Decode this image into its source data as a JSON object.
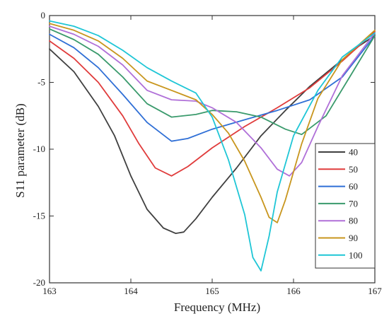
{
  "chart_data": {
    "type": "line",
    "xlabel": "Frequency (MHz)",
    "ylabel": "S11 parameter (dB)",
    "xlim": [
      163,
      167
    ],
    "ylim": [
      -20,
      0
    ],
    "xticks": [
      "163",
      "164",
      "165",
      "166",
      "167"
    ],
    "yticks": [
      "0",
      "-5",
      "-10",
      "-15",
      "-20"
    ],
    "legend_position": "right-inside",
    "grid": false,
    "series": [
      {
        "name": "40",
        "color": "#404040",
        "x": [
          163.0,
          163.3,
          163.6,
          163.8,
          164.0,
          164.2,
          164.4,
          164.55,
          164.65,
          164.8,
          165.0,
          165.3,
          165.6,
          165.9,
          166.2,
          166.5,
          166.8,
          167.0
        ],
        "y": [
          -2.5,
          -4.2,
          -6.8,
          -9.0,
          -12.0,
          -14.5,
          -15.9,
          -16.3,
          -16.2,
          -15.2,
          -13.6,
          -11.4,
          -9.0,
          -7.1,
          -5.3,
          -3.8,
          -2.3,
          -1.5
        ]
      },
      {
        "name": "50",
        "color": "#e03c3c",
        "x": [
          163.0,
          163.3,
          163.6,
          163.9,
          164.1,
          164.3,
          164.5,
          164.7,
          165.0,
          165.4,
          165.8,
          166.2,
          166.6,
          167.0
        ],
        "y": [
          -1.9,
          -3.2,
          -5.0,
          -7.5,
          -9.6,
          -11.4,
          -12.0,
          -11.3,
          -9.9,
          -8.3,
          -6.9,
          -5.4,
          -3.4,
          -1.2
        ]
      },
      {
        "name": "60",
        "color": "#2f6fd6",
        "x": [
          163.0,
          163.3,
          163.6,
          163.9,
          164.2,
          164.5,
          164.7,
          165.0,
          165.4,
          165.8,
          166.2,
          166.6,
          167.0
        ],
        "y": [
          -1.4,
          -2.4,
          -3.9,
          -5.9,
          -8.0,
          -9.4,
          -9.2,
          -8.5,
          -7.8,
          -7.1,
          -6.3,
          -4.6,
          -1.5
        ]
      },
      {
        "name": "70",
        "color": "#3a9a6c",
        "x": [
          163.0,
          163.3,
          163.6,
          163.9,
          164.2,
          164.5,
          164.8,
          165.0,
          165.3,
          165.6,
          165.9,
          166.1,
          166.4,
          166.7,
          167.0
        ],
        "y": [
          -1.0,
          -1.8,
          -2.9,
          -4.6,
          -6.6,
          -7.6,
          -7.4,
          -7.1,
          -7.2,
          -7.6,
          -8.5,
          -8.9,
          -7.5,
          -4.5,
          -1.5
        ]
      },
      {
        "name": "80",
        "color": "#b070d8",
        "x": [
          163.0,
          163.3,
          163.6,
          163.9,
          164.2,
          164.5,
          164.8,
          165.0,
          165.3,
          165.6,
          165.8,
          165.95,
          166.1,
          166.3,
          166.6,
          167.0
        ],
        "y": [
          -0.8,
          -1.4,
          -2.3,
          -3.7,
          -5.6,
          -6.3,
          -6.4,
          -6.9,
          -8.0,
          -9.9,
          -11.5,
          -12.0,
          -11.0,
          -8.3,
          -4.5,
          -1.3
        ]
      },
      {
        "name": "90",
        "color": "#c8961e",
        "x": [
          163.0,
          163.3,
          163.6,
          163.9,
          164.2,
          164.5,
          164.8,
          165.0,
          165.2,
          165.4,
          165.6,
          165.7,
          165.8,
          165.9,
          166.1,
          166.3,
          166.6,
          167.0
        ],
        "y": [
          -0.6,
          -1.1,
          -1.9,
          -3.2,
          -4.9,
          -5.6,
          -6.3,
          -7.4,
          -8.8,
          -10.9,
          -13.6,
          -15.1,
          -15.5,
          -13.8,
          -9.6,
          -6.2,
          -3.3,
          -1.1
        ]
      },
      {
        "name": "100",
        "color": "#1fc6d6",
        "x": [
          163.0,
          163.3,
          163.6,
          163.9,
          164.2,
          164.5,
          164.8,
          165.0,
          165.2,
          165.4,
          165.5,
          165.6,
          165.7,
          165.8,
          166.0,
          166.3,
          166.6,
          167.0
        ],
        "y": [
          -0.4,
          -0.8,
          -1.5,
          -2.6,
          -3.9,
          -4.9,
          -5.8,
          -7.6,
          -10.8,
          -14.9,
          -18.1,
          -19.1,
          -16.5,
          -13.2,
          -9.0,
          -5.6,
          -3.1,
          -1.3
        ]
      }
    ]
  }
}
